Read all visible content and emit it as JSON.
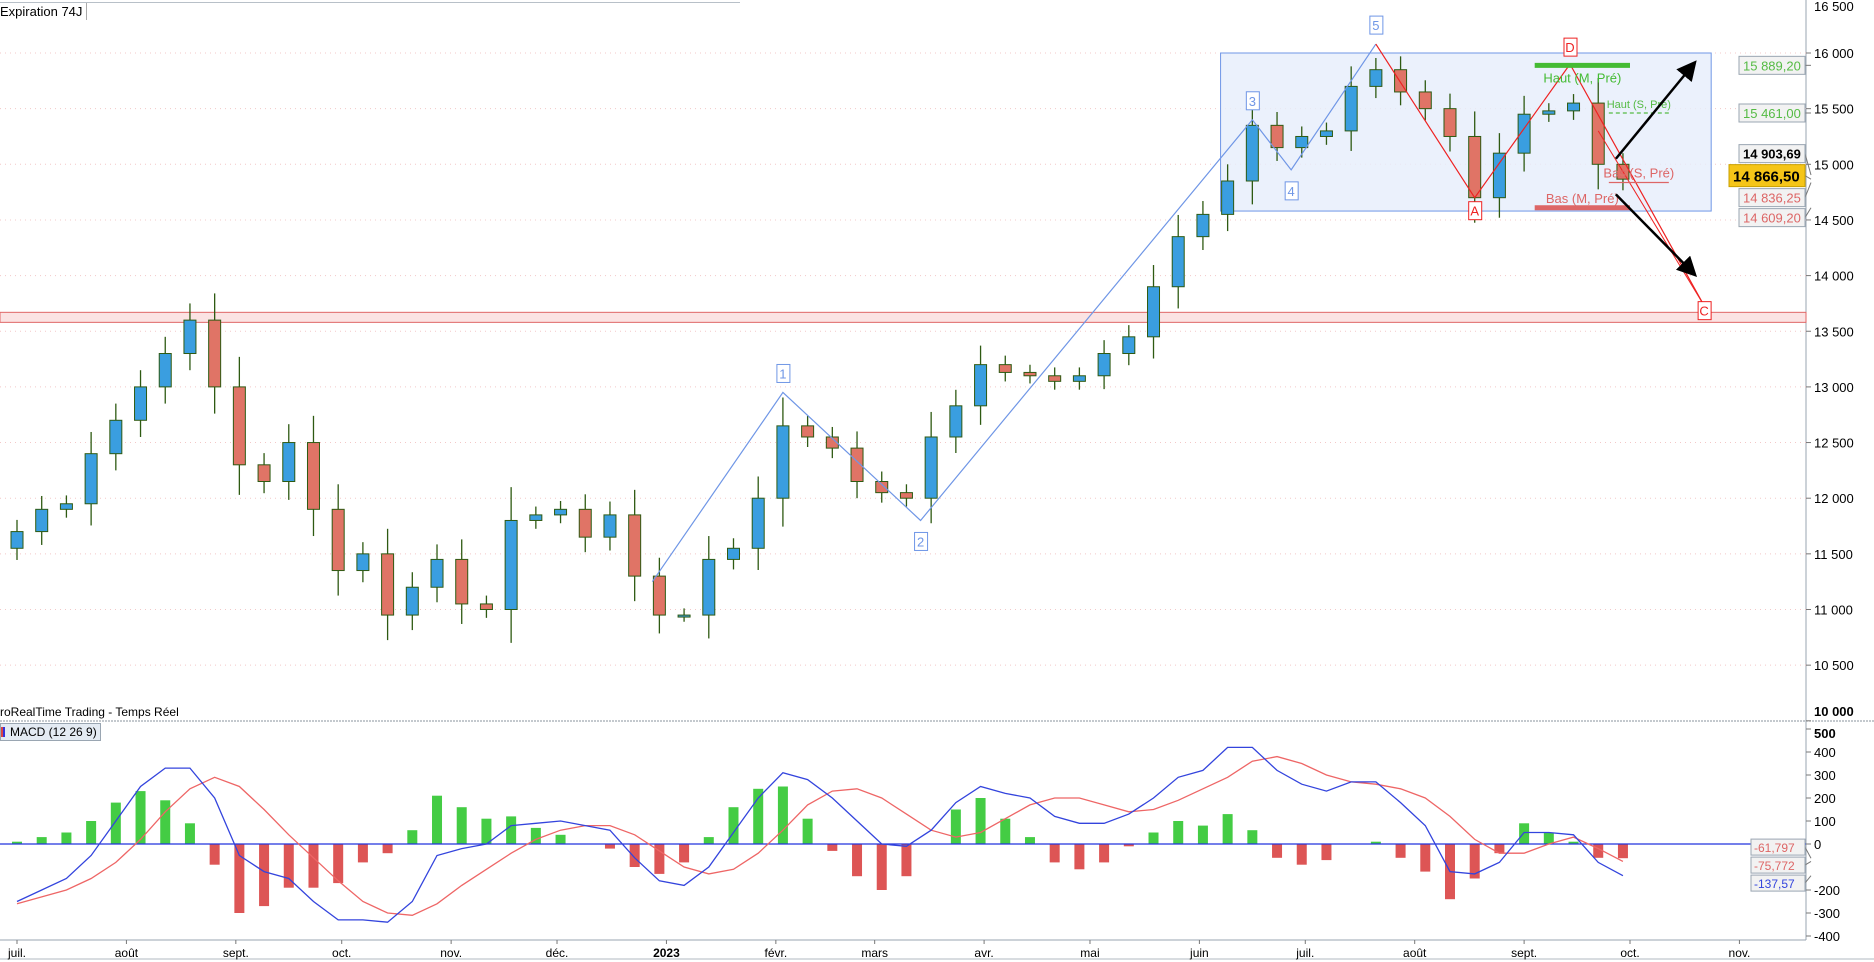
{
  "header": {
    "expiration_label": "Expiration",
    "expiration_value": "74J"
  },
  "source_label": "roRealTime Trading - Temps Réel",
  "indicator_label": "MACD (12 26 9)",
  "colors": {
    "bull_body": "#3a9ee0",
    "bear_body": "#e07466",
    "wick": "#2e5a12",
    "macd": "#3344dd",
    "signal": "#ee6666",
    "hist_pos": "#44cc44",
    "hist_neg": "#dd5555",
    "box_fill": "#e6eefb",
    "box_stroke": "#6f96e6",
    "zone": "#f2b5b5",
    "wave": "#6f96e6",
    "abc": "#ee2222"
  },
  "chart_data": [
    {
      "type": "candlestick",
      "xlim": [
        "2022-06-27",
        "2023-11-20"
      ],
      "ylim": [
        10000,
        16500
      ],
      "y_ticks": [
        {
          "v": 16500,
          "t": "16 500"
        },
        {
          "v": 16000,
          "t": "16 000"
        },
        {
          "v": 15500,
          "t": "15 500"
        },
        {
          "v": 15000,
          "t": "15 000"
        },
        {
          "v": 14500,
          "t": "14 500"
        },
        {
          "v": 14000,
          "t": "14 000"
        },
        {
          "v": 13500,
          "t": "13 500"
        },
        {
          "v": 13000,
          "t": "13 000"
        },
        {
          "v": 12500,
          "t": "12 500"
        },
        {
          "v": 12000,
          "t": "12 000"
        },
        {
          "v": 11500,
          "t": "11 500"
        },
        {
          "v": 11000,
          "t": "11 000"
        },
        {
          "v": 10500,
          "t": "10 500"
        },
        {
          "v": 10000,
          "t": "10 000"
        }
      ],
      "x_ticks": [
        {
          "d": "2022-07-01",
          "t": "juil."
        },
        {
          "d": "2022-08-01",
          "t": "août"
        },
        {
          "d": "2022-09-01",
          "t": "sept."
        },
        {
          "d": "2022-10-01",
          "t": "oct."
        },
        {
          "d": "2022-11-01",
          "t": "nov."
        },
        {
          "d": "2022-12-01",
          "t": "déc."
        },
        {
          "d": "2023-01-01",
          "t": "2023",
          "bold": true
        },
        {
          "d": "2023-02-01",
          "t": "févr."
        },
        {
          "d": "2023-03-01",
          "t": "mars"
        },
        {
          "d": "2023-04-01",
          "t": "avr."
        },
        {
          "d": "2023-05-01",
          "t": "mai"
        },
        {
          "d": "2023-06-01",
          "t": "juin"
        },
        {
          "d": "2023-07-01",
          "t": "juil."
        },
        {
          "d": "2023-08-01",
          "t": "août"
        },
        {
          "d": "2023-09-01",
          "t": "sept."
        },
        {
          "d": "2023-10-01",
          "t": "oct."
        },
        {
          "d": "2023-11-01",
          "t": "nov."
        }
      ],
      "dates": [
        "2022-07-01",
        "2022-07-08",
        "2022-07-15",
        "2022-07-22",
        "2022-07-29",
        "2022-08-05",
        "2022-08-12",
        "2022-08-19",
        "2022-08-26",
        "2022-09-02",
        "2022-09-09",
        "2022-09-16",
        "2022-09-23",
        "2022-09-30",
        "2022-10-07",
        "2022-10-14",
        "2022-10-21",
        "2022-10-28",
        "2022-11-04",
        "2022-11-11",
        "2022-11-18",
        "2022-11-25",
        "2022-12-02",
        "2022-12-09",
        "2022-12-16",
        "2022-12-23",
        "2022-12-30",
        "2023-01-06",
        "2023-01-13",
        "2023-01-20",
        "2023-01-27",
        "2023-02-03",
        "2023-02-10",
        "2023-02-17",
        "2023-02-24",
        "2023-03-03",
        "2023-03-10",
        "2023-03-17",
        "2023-03-24",
        "2023-03-31",
        "2023-04-07",
        "2023-04-14",
        "2023-04-21",
        "2023-04-28",
        "2023-05-05",
        "2023-05-12",
        "2023-05-19",
        "2023-05-26",
        "2023-06-02",
        "2023-06-09",
        "2023-06-16",
        "2023-06-23",
        "2023-06-30",
        "2023-07-07",
        "2023-07-14",
        "2023-07-21",
        "2023-07-28",
        "2023-08-04",
        "2023-08-11",
        "2023-08-18",
        "2023-08-25",
        "2023-09-01",
        "2023-09-08",
        "2023-09-15",
        "2023-09-22",
        "2023-09-29"
      ],
      "close": [
        11700,
        11900,
        11950,
        12400,
        12700,
        13000,
        13300,
        13600,
        13000,
        12300,
        12150,
        12500,
        11900,
        11350,
        11500,
        10950,
        11200,
        11450,
        11050,
        11000,
        11800,
        11850,
        11900,
        11650,
        11850,
        11300,
        10950,
        10950,
        11450,
        11550,
        12000,
        12650,
        12550,
        12450,
        12150,
        12050,
        12000,
        12550,
        12830,
        13200,
        13130,
        13100,
        13050,
        13100,
        13300,
        13450,
        13900,
        14350,
        14550,
        14850,
        15350,
        15150,
        15250,
        15300,
        15700,
        15850,
        15650,
        15500,
        15250,
        14700,
        15100,
        15450,
        15480,
        15550,
        15000,
        14866.5
      ],
      "last_price": {
        "v": 14866.5,
        "t": "14 866,50"
      },
      "price_labels": [
        {
          "v": 15889.2,
          "t": "15 889,20",
          "color": "#55bb44"
        },
        {
          "v": 15461.0,
          "t": "15 461,00",
          "color": "#55bb44"
        },
        {
          "v": 14903.69,
          "t": "14 903,69",
          "color": "#000000"
        },
        {
          "v": 14836.25,
          "t": "14 836,25",
          "color": "#dd6666"
        },
        {
          "v": 14609.2,
          "t": "14 609,20",
          "color": "#dd6666"
        }
      ],
      "levels": [
        {
          "label": "Haut (M, Pré)",
          "v": 15889.2,
          "from": "2023-09-04",
          "to": "2023-10-01",
          "color": "#44bb33",
          "style": "solid-thick"
        },
        {
          "label": "Haut (S, Pré)",
          "v": 15461.0,
          "from": "2023-09-25",
          "to": "2023-10-12",
          "color": "#55bb44",
          "style": "dashed"
        },
        {
          "label": "Bas (S, Pré)",
          "v": 14836.25,
          "from": "2023-09-25",
          "to": "2023-10-12",
          "color": "#dd6666",
          "style": "solid"
        },
        {
          "label": "Bas (M, Pré)",
          "v": 14609.2,
          "from": "2023-09-04",
          "to": "2023-10-01",
          "color": "#dd6666",
          "style": "solid-thick"
        }
      ],
      "zone": {
        "from": 13580,
        "to": 13670
      },
      "box": {
        "from": "2023-06-07",
        "to": "2023-10-24",
        "top": 16000,
        "bottom": 14580
      },
      "wave_points": [
        {
          "d": "2022-12-28",
          "v": 11250,
          "label": ""
        },
        {
          "d": "2023-02-03",
          "v": 12950,
          "label": "1"
        },
        {
          "d": "2023-03-14",
          "v": 11800,
          "label": "2"
        },
        {
          "d": "2023-06-16",
          "v": 15400,
          "label": "3"
        },
        {
          "d": "2023-06-27",
          "v": 14950,
          "label": "4"
        },
        {
          "d": "2023-07-21",
          "v": 16080,
          "label": "5"
        }
      ],
      "abc_points": [
        {
          "d": "2023-07-21",
          "v": 16080,
          "label": ""
        },
        {
          "d": "2023-08-18",
          "v": 14700,
          "label": "A"
        },
        {
          "d": "2023-09-14",
          "v": 15900,
          "label": "D"
        },
        {
          "d": "2023-10-22",
          "v": 13730,
          "label": "C"
        }
      ],
      "arrows": [
        {
          "from_d": "2023-09-27",
          "from_v": 15050,
          "to_d": "2023-10-19",
          "to_v": 15900
        },
        {
          "from_d": "2023-09-27",
          "from_v": 14730,
          "to_d": "2023-10-19",
          "to_v": 14020
        }
      ]
    },
    {
      "type": "line",
      "title": "MACD (12 26 9)",
      "ylim": [
        -420,
        520
      ],
      "y_ticks": [
        {
          "v": 500,
          "t": "500"
        },
        {
          "v": 400,
          "t": "400"
        },
        {
          "v": 300,
          "t": "300"
        },
        {
          "v": 200,
          "t": "200"
        },
        {
          "v": 100,
          "t": "100"
        },
        {
          "v": 0,
          "t": "0"
        },
        {
          "v": -200,
          "t": "-200"
        },
        {
          "v": -300,
          "t": "-300"
        },
        {
          "v": -400,
          "t": "-400"
        }
      ],
      "macd": [
        -250,
        -200,
        -150,
        -50,
        100,
        250,
        330,
        330,
        200,
        -50,
        -120,
        -150,
        -250,
        -330,
        -330,
        -340,
        -250,
        -50,
        -20,
        0,
        80,
        90,
        100,
        80,
        60,
        -60,
        -160,
        -180,
        -100,
        50,
        200,
        310,
        280,
        200,
        100,
        0,
        -10,
        60,
        180,
        250,
        220,
        200,
        120,
        90,
        90,
        130,
        200,
        290,
        320,
        420,
        420,
        320,
        260,
        230,
        270,
        270,
        180,
        80,
        -120,
        -130,
        -80,
        50,
        50,
        40,
        -80,
        -137.57
      ],
      "signal": [
        -260,
        -230,
        -200,
        -150,
        -80,
        20,
        140,
        240,
        290,
        250,
        150,
        40,
        -60,
        -160,
        -250,
        -300,
        -310,
        -260,
        -180,
        -110,
        -40,
        20,
        60,
        80,
        80,
        40,
        -30,
        -100,
        -130,
        -110,
        -40,
        60,
        170,
        230,
        240,
        200,
        130,
        60,
        30,
        50,
        110,
        170,
        200,
        200,
        170,
        140,
        150,
        190,
        240,
        290,
        360,
        380,
        350,
        300,
        270,
        260,
        240,
        200,
        120,
        20,
        -40,
        -40,
        0,
        30,
        -20,
        -75.772
      ],
      "value_labels": [
        {
          "v": -61.797,
          "t": "-61,797",
          "color": "#dd6666"
        },
        {
          "v": -75.772,
          "t": "-75,772",
          "color": "#dd6666"
        },
        {
          "v": -137.57,
          "t": "-137,57",
          "color": "#3344dd"
        }
      ]
    }
  ]
}
